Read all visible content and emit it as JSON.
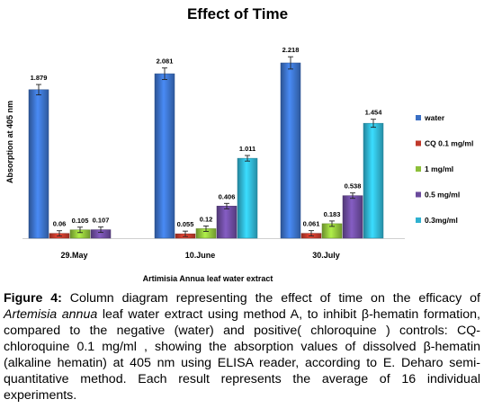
{
  "chart_data": {
    "type": "bar",
    "title": "Effect of Time",
    "xlabel": "Artimisia Annua leaf water extract",
    "ylabel": "Absorption at 405 nm",
    "categories": [
      "29.May",
      "10.June",
      "30.July"
    ],
    "ylim": [
      0,
      2.25
    ],
    "grid": false,
    "legend_position": "right",
    "series": [
      {
        "name": "water",
        "color": "#3a6fc4",
        "values": [
          1.879,
          2.081,
          2.218
        ],
        "labels": [
          "1.879",
          "2.081",
          "2.218"
        ]
      },
      {
        "name": "CQ 0.1 mg/ml",
        "color": "#c0392b",
        "values": [
          0.06,
          0.055,
          0.061
        ],
        "labels": [
          "0.06",
          "0.055",
          "0.061"
        ]
      },
      {
        "name": "1 mg/ml",
        "color": "#8dbf3a",
        "values": [
          0.105,
          0.12,
          0.183
        ],
        "labels": [
          "0.105",
          "0.12",
          "0.183"
        ]
      },
      {
        "name": "0.5 mg/ml",
        "color": "#6a4a9c",
        "values": [
          0.107,
          0.406,
          0.538
        ],
        "labels": [
          "0.107",
          "0.406",
          "0.538"
        ]
      },
      {
        "name": "0.3mg/ml",
        "color": "#2fb1d0",
        "values": [
          null,
          1.011,
          1.454
        ],
        "labels": [
          null,
          "1.011",
          "1.454"
        ]
      }
    ]
  },
  "caption": {
    "figure_label": "Figure 4:",
    "part1": " Column diagram representing the effect of time on the efficacy of ",
    "species": "Artemisia annua",
    "part2": " leaf water extract using method A, to inhibit β-hematin formation, compared to the negative (water) and positive( chloroquine ) controls: CQ- chloroquine 0.1 mg/ml , showing the absorption values of dissolved β-hematin (alkaline hematin) at 405 nm using ELISA reader, according to E. Deharo semi-quantitative method. Each result represents the average of 16 individual experiments."
  }
}
